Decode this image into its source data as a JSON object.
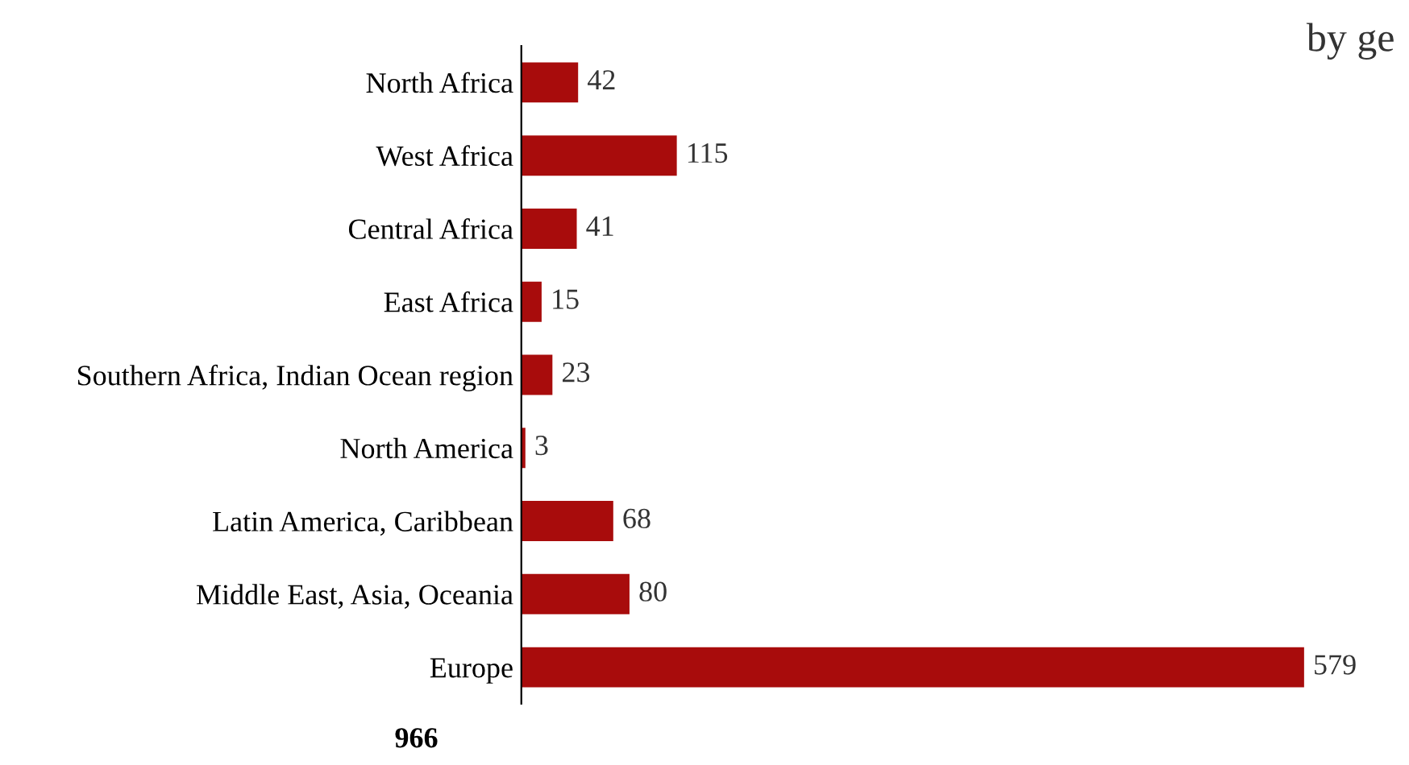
{
  "chart_data": {
    "type": "bar",
    "orientation": "horizontal",
    "title": "by ge",
    "categories": [
      "North Africa",
      "West Africa",
      "Central Africa",
      "East Africa",
      "Southern Africa, Indian Ocean region",
      "North America",
      "Latin America, Caribbean",
      "Middle East, Asia, Oceania",
      "Europe"
    ],
    "values": [
      42,
      115,
      41,
      15,
      23,
      3,
      68,
      80,
      579
    ],
    "color": "#a80c0c",
    "data_labels": true,
    "tick_labels": "y",
    "grid": false,
    "annotations": [
      "966"
    ]
  }
}
